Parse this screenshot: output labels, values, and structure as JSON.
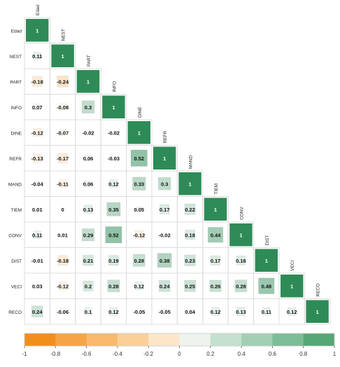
{
  "chart_data": {
    "type": "heatmap",
    "variables": [
      "Edad",
      "NEST",
      "PART",
      "INFO",
      "DINE",
      "REFR",
      "MAND",
      "TIEM",
      "CONV",
      "DIST",
      "VECI",
      "RECO"
    ],
    "values": [
      [
        1
      ],
      [
        0.11,
        1
      ],
      [
        -0.18,
        -0.24,
        1
      ],
      [
        0.07,
        -0.08,
        0.3,
        1
      ],
      [
        -0.12,
        -0.07,
        -0.02,
        -0.02,
        1
      ],
      [
        -0.13,
        -0.17,
        0.06,
        -0.03,
        0.52,
        1
      ],
      [
        -0.04,
        -0.11,
        0.06,
        0.12,
        0.33,
        0.3,
        1
      ],
      [
        0.01,
        0,
        0.13,
        0.35,
        0.05,
        0.17,
        0.22,
        1
      ],
      [
        0.11,
        0.01,
        0.29,
        0.52,
        -0.12,
        -0.02,
        0.18,
        0.44,
        1
      ],
      [
        -0.01,
        -0.18,
        0.21,
        0.19,
        0.28,
        0.38,
        0.23,
        0.17,
        0.16,
        1
      ],
      [
        0.03,
        -0.12,
        0.2,
        0.28,
        0.12,
        0.24,
        0.25,
        0.26,
        0.28,
        0.48,
        1
      ],
      [
        0.24,
        -0.06,
        0.1,
        0.12,
        -0.05,
        -0.05,
        0.04,
        0.12,
        0.13,
        0.11,
        0.12,
        1
      ]
    ],
    "labels": [
      [
        "1"
      ],
      [
        "0.11",
        "1"
      ],
      [
        "-0.18",
        "-0.24",
        "1"
      ],
      [
        "0.07",
        "-0.08",
        "0.3",
        "1"
      ],
      [
        "-0.12",
        "-0.07",
        "-0.02",
        "-0.02",
        "1"
      ],
      [
        "-0.13",
        "-0.17",
        "0.06",
        "-0.03",
        "0.52",
        "1"
      ],
      [
        "-0.04",
        "-0.11",
        "0.06",
        "0.12",
        "0.33",
        "0.3",
        "1"
      ],
      [
        "0.01",
        "0",
        "0.13",
        "0.35",
        "0.05",
        "0.17",
        "0.22",
        "1"
      ],
      [
        "0.11",
        "0.01",
        "0.29",
        "0.52",
        "-0.12",
        "-0.02",
        "0.18",
        "0.44",
        "1"
      ],
      [
        "-0.01",
        "-0.18",
        "0.21",
        "0.19",
        "0.28",
        "0.38",
        "0.23",
        "0.17",
        "0.16",
        "1"
      ],
      [
        "0.03",
        "-0.12",
        "0.2",
        "0.28",
        "0.12",
        "0.24",
        "0.25",
        "0.26",
        "0.28",
        "0.48",
        "1"
      ],
      [
        "0.24",
        "-0.06",
        "0.1",
        "0.12",
        "-0.05",
        "-0.05",
        "0.04",
        "0.12",
        "0.13",
        "0.11",
        "0.12",
        "1"
      ]
    ],
    "colorbar": {
      "range": [
        -1,
        1
      ],
      "ticks": [
        -1,
        -0.8,
        -0.6,
        -0.4,
        -0.2,
        0,
        0.2,
        0.4,
        0.6,
        0.8,
        1
      ],
      "tick_labels": [
        "-1",
        "-0.8",
        "-0.6",
        "-0.4",
        "-0.2",
        "0",
        "0.2",
        "0.4",
        "0.6",
        "0.8",
        "1"
      ],
      "colors": [
        "#f28e1c",
        "#f6a446",
        "#f8b96c",
        "#fbcf98",
        "#fde6c8",
        "#eef3ee",
        "#c4e0cf",
        "#a2cfb3",
        "#7cbc96",
        "#55a776"
      ],
      "negative_color": "#f28e1c",
      "positive_color": "#2e8b57"
    },
    "legend_position": "bottom",
    "grid": true
  }
}
